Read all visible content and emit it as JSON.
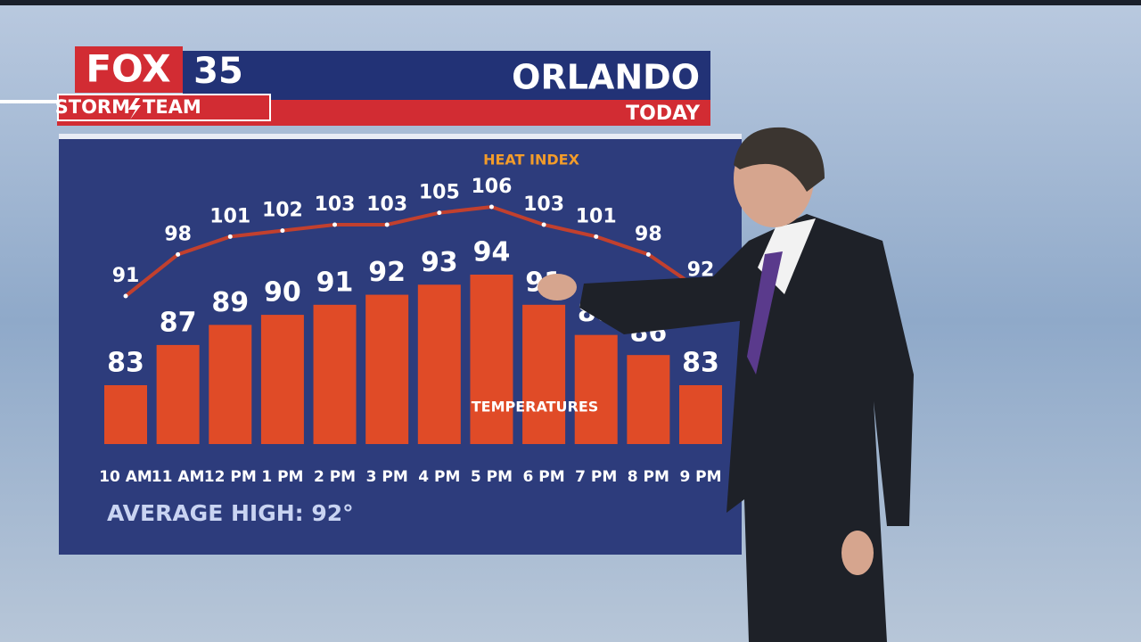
{
  "brand": {
    "network": "FOX",
    "channel": "35",
    "team_left": "STORM",
    "team_right": "TEAM"
  },
  "chart_data": {
    "type": "bar",
    "title": "ORLANDO",
    "subtitle": "TODAY",
    "categories": [
      "10 AM",
      "11 AM",
      "12 PM",
      "1 PM",
      "2 PM",
      "3 PM",
      "4 PM",
      "5 PM",
      "6 PM",
      "7 PM",
      "8 PM",
      "9 PM"
    ],
    "series": [
      {
        "name": "TEMPERATURES",
        "color": "#e04b27",
        "values": [
          83,
          87,
          89,
          90,
          91,
          92,
          93,
          94,
          91,
          88,
          86,
          83
        ]
      },
      {
        "name": "HEAT INDEX",
        "type": "line",
        "color": "#c2402e",
        "values": [
          91,
          98,
          101,
          102,
          103,
          103,
          105,
          106,
          103,
          101,
          98,
          92
        ]
      }
    ],
    "annotation": "AVERAGE HIGH: 92°"
  }
}
